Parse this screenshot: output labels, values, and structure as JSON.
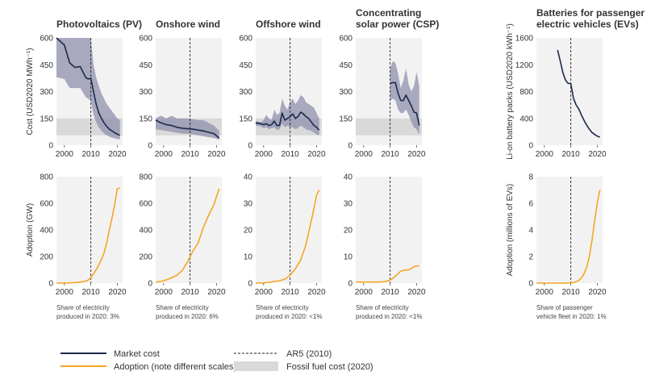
{
  "legend": {
    "market_cost": "Market cost",
    "adoption": "Adoption (note different scales)",
    "ar5": "AR5 (2010)",
    "fossil": "Fossil fuel cost (2020)"
  },
  "colors": {
    "market_cost": "#1b2a49",
    "band": "#8f8fae",
    "adoption": "#f5a623",
    "fossil": "#d9d9d9",
    "panel_bg": "#f2f2f2"
  },
  "chart_data": [
    {
      "type": "line",
      "title_lines": [
        "Photovoltaics (PV)"
      ],
      "ylabel": "Cost (USD2020 MWh⁻¹)",
      "xticks": [
        "2000",
        "2010",
        "2020"
      ],
      "yticks": [
        0,
        150,
        300,
        450,
        600
      ],
      "xlim": [
        1997,
        2022
      ],
      "ylim": [
        0,
        600
      ],
      "fossil_band": [
        55,
        150
      ],
      "x": [
        1997,
        2000,
        2002,
        2004,
        2006,
        2008,
        2009,
        2010,
        2011,
        2012,
        2013,
        2014,
        2015,
        2016,
        2017,
        2018,
        2019,
        2020,
        2021
      ],
      "values": [
        600,
        560,
        460,
        435,
        440,
        380,
        370,
        375,
        300,
        230,
        180,
        150,
        125,
        105,
        90,
        80,
        70,
        62,
        55
      ],
      "range_upper": [
        600,
        600,
        600,
        600,
        600,
        600,
        600,
        600,
        450,
        380,
        330,
        290,
        260,
        230,
        210,
        190,
        170,
        150,
        140
      ],
      "range_lower": [
        380,
        370,
        320,
        320,
        320,
        270,
        260,
        250,
        170,
        130,
        100,
        80,
        65,
        55,
        48,
        42,
        38,
        35,
        32
      ]
    },
    {
      "type": "line",
      "title_lines": [
        "Onshore wind"
      ],
      "xticks": [
        "2000",
        "2010",
        "2020"
      ],
      "yticks": [
        0,
        150,
        300,
        450,
        600
      ],
      "xlim": [
        1997,
        2022
      ],
      "ylim": [
        0,
        600
      ],
      "fossil_band": [
        55,
        150
      ],
      "x": [
        1997,
        1999,
        2001,
        2003,
        2005,
        2007,
        2009,
        2011,
        2013,
        2015,
        2017,
        2019,
        2021
      ],
      "values": [
        140,
        125,
        115,
        110,
        100,
        95,
        92,
        90,
        85,
        80,
        72,
        65,
        40
      ],
      "range_upper": [
        150,
        165,
        150,
        165,
        150,
        150,
        150,
        145,
        140,
        140,
        125,
        110,
        80
      ],
      "range_lower": [
        90,
        85,
        80,
        75,
        70,
        65,
        65,
        60,
        55,
        50,
        45,
        40,
        30
      ]
    },
    {
      "type": "line",
      "title_lines": [
        "Offshore wind"
      ],
      "xticks": [
        "2000",
        "2010",
        "2020"
      ],
      "yticks": [
        0,
        150,
        300,
        450,
        600
      ],
      "xlim": [
        1997,
        2022
      ],
      "ylim": [
        0,
        600
      ],
      "fossil_band": [
        55,
        150
      ],
      "x": [
        1997,
        1999,
        2000,
        2001,
        2002,
        2003,
        2004,
        2005,
        2006,
        2007,
        2008,
        2009,
        2010,
        2011,
        2012,
        2013,
        2014,
        2015,
        2016,
        2017,
        2018,
        2019,
        2020,
        2021
      ],
      "values": [
        125,
        120,
        115,
        120,
        110,
        115,
        135,
        110,
        110,
        180,
        140,
        150,
        160,
        175,
        150,
        160,
        185,
        175,
        160,
        150,
        130,
        110,
        100,
        85
      ],
      "range_upper": [
        135,
        130,
        140,
        170,
        150,
        140,
        200,
        170,
        180,
        260,
        220,
        200,
        240,
        260,
        230,
        250,
        280,
        270,
        240,
        230,
        220,
        210,
        180,
        150
      ],
      "range_lower": [
        110,
        105,
        95,
        100,
        90,
        95,
        100,
        85,
        90,
        120,
        100,
        110,
        100,
        100,
        90,
        95,
        110,
        100,
        90,
        85,
        80,
        70,
        60,
        55
      ]
    },
    {
      "type": "line",
      "title_lines": [
        "Concentrating",
        "solar power (CSP)"
      ],
      "xticks": [
        "2000",
        "2010",
        "2020"
      ],
      "yticks": [
        0,
        150,
        300,
        450,
        600
      ],
      "xlim": [
        1997,
        2022
      ],
      "ylim": [
        0,
        600
      ],
      "fossil_band": [
        55,
        150
      ],
      "x": [
        2010,
        2011,
        2012,
        2013,
        2014,
        2015,
        2016,
        2017,
        2018,
        2019,
        2020,
        2021
      ],
      "values": [
        345,
        350,
        350,
        290,
        250,
        250,
        280,
        250,
        220,
        185,
        180,
        110
      ],
      "range_upper": [
        430,
        470,
        460,
        400,
        320,
        360,
        430,
        340,
        300,
        330,
        410,
        330
      ],
      "range_lower": [
        250,
        260,
        250,
        200,
        180,
        180,
        200,
        170,
        130,
        100,
        90,
        60
      ]
    },
    {
      "type": "line",
      "title_lines": [
        "Batteries for passenger",
        "electric vehicles (EVs)"
      ],
      "ylabel": "Li-on battery packs (USD2020 kWh⁻¹)",
      "xticks": [
        "2000",
        "2010",
        "2020"
      ],
      "yticks": [
        0,
        400,
        800,
        1200,
        1600
      ],
      "xlim": [
        1997,
        2022
      ],
      "ylim": [
        0,
        1600
      ],
      "x": [
        2005,
        2006,
        2007,
        2008,
        2009,
        2010,
        2011,
        2012,
        2013,
        2014,
        2015,
        2016,
        2017,
        2018,
        2019,
        2020,
        2021
      ],
      "values": [
        1420,
        1260,
        1080,
        970,
        920,
        920,
        700,
        600,
        540,
        450,
        370,
        300,
        240,
        190,
        160,
        135,
        120
      ]
    },
    {
      "type": "line",
      "ylabel": "Adoption (GW)",
      "xticks": [
        "2000",
        "2010",
        "2020"
      ],
      "yticks": [
        0,
        200,
        400,
        600,
        800
      ],
      "xlim": [
        1997,
        2022
      ],
      "ylim": [
        0,
        800
      ],
      "note_lines": [
        "Share of electricity",
        "produced in 2020: 3%"
      ],
      "x": [
        1997,
        2000,
        2002,
        2004,
        2006,
        2008,
        2009,
        2010,
        2011,
        2012,
        2013,
        2014,
        2015,
        2016,
        2017,
        2018,
        2019,
        2020,
        2021
      ],
      "values": [
        0,
        1,
        2,
        4,
        7,
        15,
        23,
        40,
        70,
        100,
        138,
        177,
        228,
        303,
        400,
        490,
        590,
        710,
        715
      ]
    },
    {
      "type": "line",
      "xticks": [
        "2000",
        "2010",
        "2020"
      ],
      "yticks": [
        0,
        200,
        400,
        600,
        800
      ],
      "xlim": [
        1997,
        2022
      ],
      "ylim": [
        0,
        800
      ],
      "note_lines": [
        "Share of electricity",
        "produced in 2020: 6%"
      ],
      "x": [
        1997,
        1999,
        2001,
        2003,
        2005,
        2007,
        2009,
        2011,
        2013,
        2015,
        2017,
        2019,
        2020,
        2021
      ],
      "values": [
        8,
        13,
        24,
        40,
        59,
        94,
        159,
        238,
        300,
        417,
        510,
        590,
        650,
        710
      ]
    },
    {
      "type": "line",
      "xticks": [
        "2000",
        "2010",
        "2020"
      ],
      "yticks": [
        0,
        10,
        20,
        30,
        40
      ],
      "xlim": [
        1997,
        2022
      ],
      "ylim": [
        0,
        40
      ],
      "note_lines": [
        "Share of electricity",
        "produced in 2020: <1%"
      ],
      "x": [
        1997,
        2000,
        2002,
        2004,
        2006,
        2008,
        2010,
        2012,
        2014,
        2016,
        2017,
        2018,
        2019,
        2020,
        2021
      ],
      "values": [
        0,
        0.1,
        0.3,
        0.6,
        0.9,
        1.5,
        3,
        5.4,
        8.7,
        14.5,
        19,
        23.5,
        28,
        33,
        35
      ]
    },
    {
      "type": "line",
      "xticks": [
        "2000",
        "2010",
        "2020"
      ],
      "yticks": [
        0,
        10,
        20,
        30,
        40
      ],
      "xlim": [
        1997,
        2022
      ],
      "ylim": [
        0,
        40
      ],
      "note_lines": [
        "Share of electricity",
        "produced in 2020: <1%"
      ],
      "x": [
        1997,
        2000,
        2004,
        2006,
        2008,
        2009,
        2010,
        2011,
        2012,
        2013,
        2014,
        2015,
        2016,
        2017,
        2018,
        2019,
        2020,
        2021
      ],
      "values": [
        0.4,
        0.4,
        0.4,
        0.4,
        0.6,
        0.8,
        1.2,
        1.8,
        2.6,
        3.5,
        4.5,
        4.8,
        4.9,
        5.0,
        5.5,
        6.2,
        6.4,
        6.5
      ]
    },
    {
      "type": "line",
      "ylabel": "Adoption (millions of EVs)",
      "xticks": [
        "2000",
        "2010",
        "2020"
      ],
      "yticks": [
        0,
        2,
        4,
        6,
        8
      ],
      "xlim": [
        1997,
        2022
      ],
      "ylim": [
        0,
        8
      ],
      "note_lines": [
        "Share of passenger",
        "vehicle fleet in 2020: 1%"
      ],
      "x": [
        1997,
        2005,
        2008,
        2010,
        2011,
        2012,
        2013,
        2014,
        2015,
        2016,
        2017,
        2018,
        2019,
        2020,
        2021
      ],
      "values": [
        0,
        0,
        0,
        0.02,
        0.05,
        0.11,
        0.2,
        0.4,
        0.7,
        1.2,
        2.0,
        3.2,
        4.7,
        6.0,
        7.0
      ]
    }
  ]
}
